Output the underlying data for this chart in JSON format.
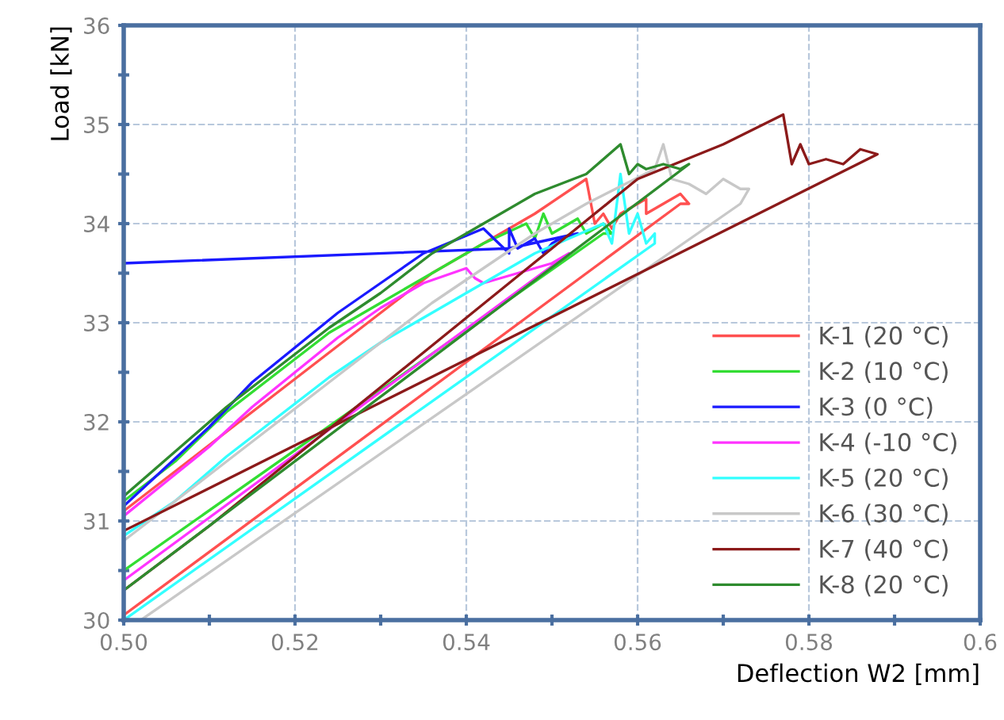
{
  "chart_data": {
    "type": "line",
    "xlabel": "Deflection W2 [mm]",
    "ylabel": "Load [kN]",
    "xlim": [
      0.5,
      0.6
    ],
    "ylim": [
      30,
      36
    ],
    "xticks": [
      {
        "value": 0.5,
        "label": "0.50"
      },
      {
        "value": 0.51,
        "label": null
      },
      {
        "value": 0.52,
        "label": "0.52"
      },
      {
        "value": 0.53,
        "label": null
      },
      {
        "value": 0.54,
        "label": "0.54"
      },
      {
        "value": 0.55,
        "label": null
      },
      {
        "value": 0.56,
        "label": "0.56"
      },
      {
        "value": 0.57,
        "label": null
      },
      {
        "value": 0.58,
        "label": "0.58"
      },
      {
        "value": 0.59,
        "label": null
      },
      {
        "value": 0.6,
        "label": "0.6"
      }
    ],
    "yticks": [
      30,
      {
        "value": 30.5,
        "label": null
      },
      31,
      {
        "value": 31.5,
        "label": null
      },
      32,
      {
        "value": 32.5,
        "label": null
      },
      33,
      {
        "value": 33.5,
        "label": null
      },
      34,
      {
        "value": 34.5,
        "label": null
      },
      35,
      {
        "value": 35.5,
        "label": null
      },
      36
    ],
    "grid": true,
    "legend": "lower right",
    "marker": "none",
    "line_style": "solid",
    "series": [
      {
        "name": "K-1 (20 °C)",
        "color": "#ff5050",
        "x": [
          0.5,
          0.506,
          0.512,
          0.518,
          0.524,
          0.53,
          0.536,
          0.542,
          0.548,
          0.554,
          0.555,
          0.556,
          0.557,
          0.558,
          0.561,
          0.561,
          0.563,
          0.565,
          0.566,
          0.565,
          0.5
        ],
        "values": [
          31.1,
          31.5,
          31.9,
          32.3,
          32.7,
          33.1,
          33.5,
          33.8,
          34.1,
          34.45,
          34.0,
          34.1,
          33.95,
          34.1,
          34.25,
          34.1,
          34.2,
          34.3,
          34.2,
          34.2,
          30.05
        ]
      },
      {
        "name": "K-2 (10 °C)",
        "color": "#33dd33",
        "x": [
          0.5,
          0.506,
          0.512,
          0.518,
          0.524,
          0.53,
          0.536,
          0.542,
          0.547,
          0.548,
          0.549,
          0.55,
          0.551,
          0.553,
          0.554,
          0.556,
          0.557,
          0.556,
          0.5
        ],
        "values": [
          31.2,
          31.6,
          32.1,
          32.5,
          32.9,
          33.2,
          33.5,
          33.8,
          34.0,
          33.85,
          34.1,
          33.9,
          33.95,
          34.05,
          33.9,
          34.0,
          33.9,
          33.9,
          30.5
        ]
      },
      {
        "name": "K-3 (0 °C)",
        "color": "#1a1aff",
        "x": [
          0.5,
          0.505,
          0.51,
          0.515,
          0.52,
          0.525,
          0.53,
          0.535,
          0.542,
          0.545,
          0.545,
          0.546,
          0.548,
          0.549,
          0.55,
          0.551,
          0.553,
          0.545,
          0.5
        ],
        "values": [
          31.15,
          31.55,
          31.95,
          32.4,
          32.75,
          33.1,
          33.4,
          33.7,
          33.95,
          33.7,
          33.95,
          33.75,
          33.85,
          33.7,
          33.8,
          33.85,
          33.9,
          33.75,
          33.6
        ]
      },
      {
        "name": "K-4 (-10 °C)",
        "color": "#ff33ff",
        "x": [
          0.5,
          0.505,
          0.51,
          0.515,
          0.52,
          0.525,
          0.53,
          0.535,
          0.54,
          0.541,
          0.542,
          0.544,
          0.546,
          0.548,
          0.55,
          0.552,
          0.5
        ],
        "values": [
          31.05,
          31.4,
          31.75,
          32.15,
          32.5,
          32.85,
          33.15,
          33.4,
          33.55,
          33.45,
          33.4,
          33.45,
          33.5,
          33.55,
          33.6,
          33.7,
          30.4
        ]
      },
      {
        "name": "K-5 (20 °C)",
        "color": "#33ffff",
        "x": [
          0.5,
          0.506,
          0.512,
          0.518,
          0.524,
          0.53,
          0.536,
          0.542,
          0.548,
          0.556,
          0.557,
          0.558,
          0.559,
          0.56,
          0.561,
          0.562,
          0.562,
          0.5
        ],
        "values": [
          30.85,
          31.2,
          31.65,
          32.05,
          32.45,
          32.8,
          33.1,
          33.4,
          33.7,
          34.0,
          33.8,
          34.5,
          33.9,
          34.1,
          33.8,
          33.9,
          33.8,
          30.0
        ]
      },
      {
        "name": "K-6 (30 °C)",
        "color": "#c8c8c8",
        "x": [
          0.5,
          0.506,
          0.512,
          0.518,
          0.524,
          0.53,
          0.536,
          0.542,
          0.548,
          0.554,
          0.562,
          0.563,
          0.564,
          0.566,
          0.568,
          0.57,
          0.572,
          0.573,
          0.572,
          0.502
        ],
        "values": [
          30.8,
          31.2,
          31.6,
          32.0,
          32.4,
          32.8,
          33.2,
          33.55,
          33.9,
          34.2,
          34.55,
          34.8,
          34.45,
          34.4,
          34.3,
          34.45,
          34.35,
          34.35,
          34.2,
          30.0
        ]
      },
      {
        "name": "K-7 (40 °C)",
        "color": "#8b1a1a",
        "x": [
          0.5,
          0.51,
          0.52,
          0.53,
          0.54,
          0.55,
          0.56,
          0.57,
          0.577,
          0.578,
          0.579,
          0.58,
          0.582,
          0.584,
          0.586,
          0.588,
          0.5
        ],
        "values": [
          30.3,
          30.95,
          31.65,
          32.35,
          33.05,
          33.75,
          34.45,
          34.8,
          35.1,
          34.6,
          34.8,
          34.6,
          34.65,
          34.6,
          34.75,
          34.7,
          30.9
        ]
      },
      {
        "name": "K-8 (20 °C)",
        "color": "#2e8b2e",
        "x": [
          0.5,
          0.506,
          0.512,
          0.518,
          0.524,
          0.53,
          0.536,
          0.542,
          0.548,
          0.554,
          0.558,
          0.559,
          0.56,
          0.561,
          0.563,
          0.565,
          0.566,
          0.5
        ],
        "values": [
          31.25,
          31.7,
          32.15,
          32.55,
          32.95,
          33.3,
          33.7,
          34.0,
          34.3,
          34.5,
          34.8,
          34.5,
          34.6,
          34.55,
          34.6,
          34.55,
          34.6,
          30.3
        ]
      }
    ]
  }
}
